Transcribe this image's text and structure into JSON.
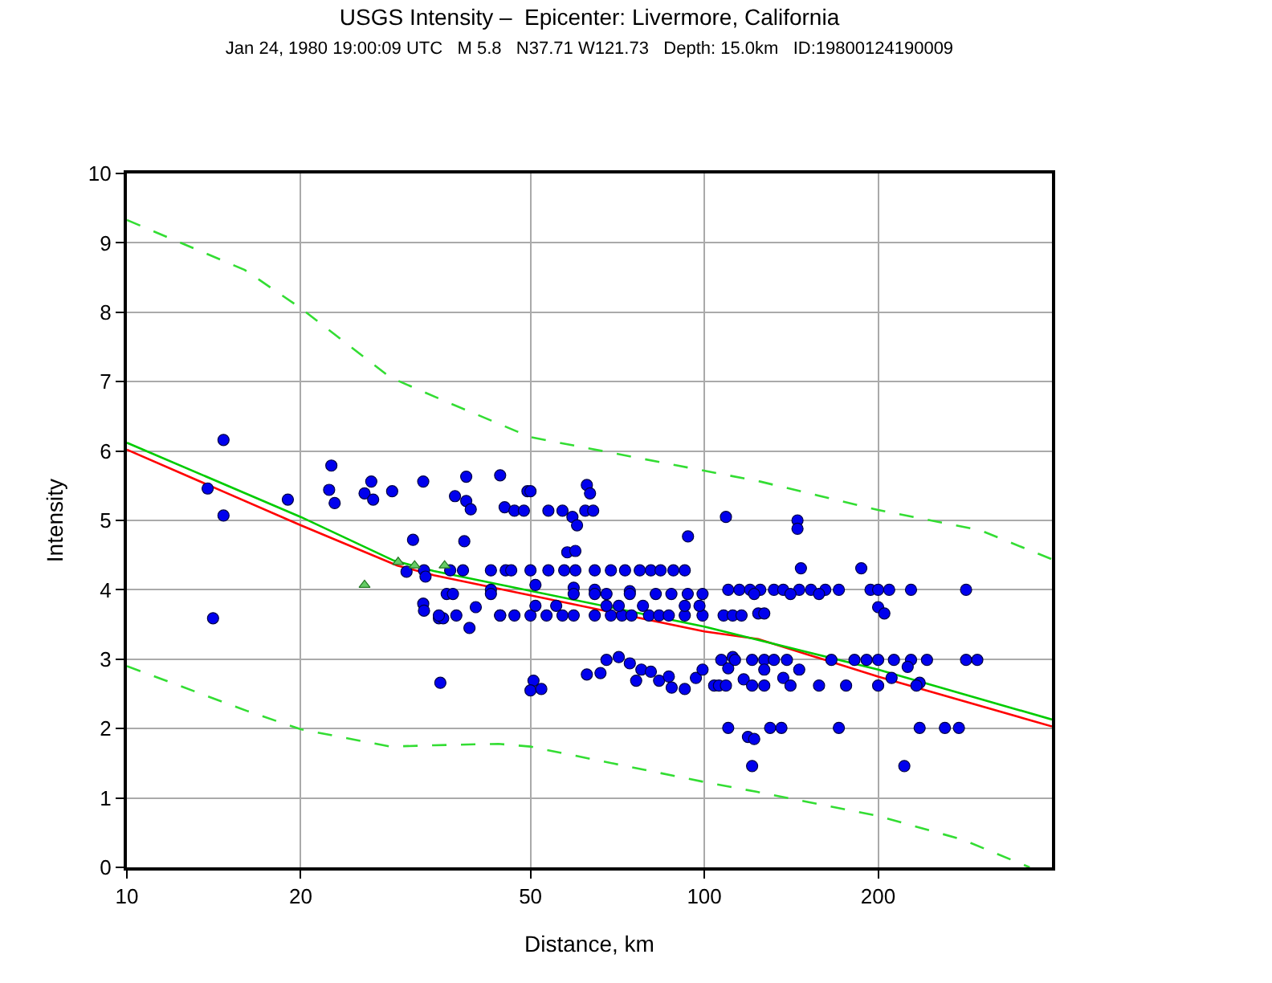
{
  "chart_data": {
    "type": "scatter",
    "title": "USGS Intensity –  Epicenter: Livermore, California",
    "subtitle": "Jan 24, 1980 19:00:09 UTC   M 5.8   N37.71 W121.73   Depth: 15.0km   ID:19800124190009",
    "xlabel": "Distance, km",
    "ylabel": "Intensity",
    "log": "x",
    "xlim": [
      10,
      400
    ],
    "ylim": [
      0,
      10
    ],
    "xticks": [
      10,
      20,
      50,
      100,
      200
    ],
    "yticks": [
      0,
      1,
      2,
      3,
      4,
      5,
      6,
      7,
      8,
      9,
      10
    ],
    "grid": true,
    "series": [
      {
        "marker": "circle",
        "color": "#0000ee",
        "x": [
          14.7,
          13.8,
          14.7,
          14.1,
          19.0,
          22.6,
          22.4,
          22.9,
          25.8,
          26.5,
          26.7,
          28.8,
          32.6,
          31.3,
          30.5,
          32.7,
          32.9,
          32.6,
          32.7,
          34.7,
          35.3,
          34.9,
          35.8,
          38.7,
          44.3,
          37.0,
          38.7,
          39.4,
          45.1,
          46.9,
          48.7,
          49.4,
          50.0,
          53.7,
          56.8,
          59.1,
          60.2,
          62.6,
          63.4,
          62.2,
          64.2,
          38.4,
          57.9,
          59.8,
          109,
          93.7,
          36.7,
          42.7,
          51.0,
          59.4,
          64.6,
          74.3,
          40.2,
          39.2,
          44.3,
          50.6,
          50.0,
          52.2,
          62.6,
          66.1,
          67.7,
          71.1,
          74.3,
          76.2,
          77.8,
          80.8,
          83.5,
          86.8,
          87.8,
          92.5,
          96.7,
          99.3,
          110,
          119,
          121,
          107,
          112,
          110,
          117,
          36.3,
          38.2,
          42.7,
          45.3,
          46.3,
          50.0,
          53.7,
          57.2,
          59.8,
          64.6,
          68.9,
          72.9,
          77.3,
          80.8,
          84.0,
          88.4,
          92.5,
          34.7,
          37.2,
          44.3,
          46.9,
          50.0,
          53.3,
          56.8,
          59.4,
          64.6,
          68.9,
          72.0,
          74.8,
          80.2,
          83.5,
          86.8,
          92.5,
          99.3,
          108,
          112,
          116,
          42.7,
          59.4,
          64.6,
          67.7,
          74.3,
          82.4,
          87.7,
          93.6,
          99.3,
          51.0,
          55.4,
          67.7,
          71.1,
          78.3,
          92.5,
          98.1,
          145,
          145,
          147,
          187,
          110,
          115,
          120,
          125,
          132,
          137,
          146,
          153,
          162,
          171,
          194,
          200,
          209,
          228,
          284,
          122,
          141,
          158,
          124,
          127,
          200,
          205,
          113,
          121,
          127,
          132,
          139,
          166,
          182,
          191,
          200,
          213,
          228,
          243,
          284,
          297,
          127,
          146,
          225,
          137,
          211,
          236,
          104,
          106,
          109,
          121,
          127,
          141,
          158,
          176,
          200,
          233,
          130,
          136,
          171,
          236,
          261,
          276,
          122,
          222
        ],
        "values": [
          6.16,
          5.46,
          5.07,
          3.59,
          5.3,
          5.79,
          5.44,
          5.25,
          5.39,
          5.56,
          5.3,
          5.42,
          5.56,
          4.72,
          4.26,
          4.28,
          4.19,
          3.8,
          3.7,
          3.59,
          3.59,
          2.66,
          3.94,
          5.63,
          5.65,
          5.35,
          5.28,
          5.16,
          5.19,
          5.14,
          5.14,
          5.42,
          5.42,
          5.14,
          5.14,
          5.05,
          4.93,
          5.51,
          5.39,
          5.14,
          5.14,
          4.7,
          4.54,
          4.56,
          5.05,
          4.77,
          3.94,
          4.0,
          4.07,
          4.03,
          4.0,
          3.98,
          3.75,
          3.45,
          3.63,
          2.69,
          2.55,
          2.57,
          2.78,
          2.8,
          2.99,
          3.03,
          2.94,
          2.69,
          2.85,
          2.82,
          2.69,
          2.75,
          2.59,
          2.57,
          2.73,
          2.85,
          2.01,
          1.88,
          1.46,
          2.99,
          3.03,
          2.87,
          2.71,
          4.28,
          4.28,
          4.28,
          4.28,
          4.28,
          4.28,
          4.28,
          4.28,
          4.28,
          4.28,
          4.28,
          4.28,
          4.28,
          4.28,
          4.28,
          4.28,
          4.28,
          3.63,
          3.63,
          3.63,
          3.63,
          3.63,
          3.63,
          3.63,
          3.63,
          3.63,
          3.63,
          3.63,
          3.63,
          3.63,
          3.63,
          3.63,
          3.63,
          3.63,
          3.63,
          3.63,
          3.63,
          3.94,
          3.94,
          3.94,
          3.94,
          3.94,
          3.94,
          3.94,
          3.94,
          3.94,
          3.77,
          3.77,
          3.77,
          3.77,
          3.77,
          3.77,
          3.77,
          5.0,
          4.88,
          4.31,
          4.31,
          4.0,
          4.0,
          4.0,
          4.0,
          4.0,
          4.0,
          4.0,
          4.0,
          4.0,
          4.0,
          4.0,
          4.0,
          4.0,
          4.0,
          4.0,
          3.94,
          3.94,
          3.94,
          3.66,
          3.66,
          3.75,
          3.66,
          2.99,
          2.99,
          2.99,
          2.99,
          2.99,
          2.99,
          2.99,
          2.99,
          2.99,
          2.99,
          2.99,
          2.99,
          2.99,
          2.99,
          2.85,
          2.85,
          2.89,
          2.73,
          2.73,
          2.66,
          2.62,
          2.62,
          2.62,
          2.62,
          2.62,
          2.62,
          2.62,
          2.62,
          2.62,
          2.62,
          2.01,
          2.01,
          2.01,
          2.01,
          2.01,
          2.01,
          1.85,
          1.46
        ]
      },
      {
        "type": "scatter",
        "marker": "triangle",
        "color": "#66cc66",
        "x": [
          25.8,
          29.5,
          31.5,
          35.5
        ],
        "values": [
          4.07,
          4.4,
          4.35,
          4.35
        ]
      },
      {
        "type": "line",
        "line_style": "solid",
        "color": "#ff0000",
        "x": [
          10,
          20,
          29.4,
          34,
          100,
          124,
          200,
          400
        ],
        "values": [
          6.02,
          4.93,
          4.35,
          4.21,
          3.4,
          3.29,
          2.75,
          2.03
        ]
      },
      {
        "type": "line",
        "line_style": "solid",
        "color": "#00cc00",
        "x": [
          10,
          20,
          29,
          34,
          100,
          200,
          400
        ],
        "values": [
          6.12,
          5.05,
          4.42,
          4.27,
          3.47,
          2.85,
          2.13
        ]
      },
      {
        "type": "line",
        "line_style": "dashed",
        "color": "#33dd33",
        "x": [
          10,
          16,
          20,
          28.6,
          36,
          50,
          90,
          125,
          200,
          300,
          400
        ],
        "values": [
          9.33,
          8.61,
          8.06,
          7.06,
          6.7,
          6.2,
          5.79,
          5.56,
          5.15,
          4.86,
          4.44
        ]
      },
      {
        "type": "line",
        "line_style": "dashed",
        "color": "#33dd33",
        "x": [
          10,
          16.2,
          20,
          28.6,
          34,
          44,
          50,
          100,
          123,
          200,
          280,
          366
        ],
        "values": [
          2.9,
          2.25,
          1.99,
          1.74,
          1.76,
          1.78,
          1.74,
          1.23,
          1.09,
          0.74,
          0.4,
          0
        ]
      }
    ]
  }
}
